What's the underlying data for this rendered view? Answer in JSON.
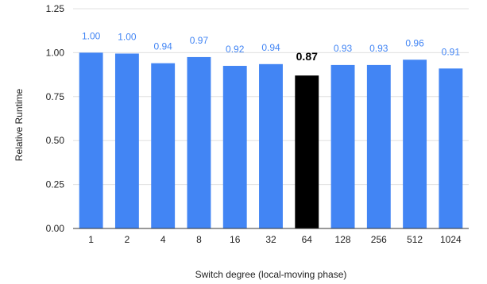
{
  "chart_data": {
    "type": "bar",
    "title": "",
    "xlabel": "Switch degree (local-moving phase)",
    "ylabel": "Relative Runtime",
    "categories": [
      "1",
      "2",
      "4",
      "8",
      "16",
      "32",
      "64",
      "128",
      "256",
      "512",
      "1024"
    ],
    "values": [
      1.0,
      0.995,
      0.94,
      0.975,
      0.925,
      0.935,
      0.87,
      0.93,
      0.93,
      0.96,
      0.91
    ],
    "data_labels": [
      "1.00",
      "1.00",
      "0.94",
      "0.97",
      "0.92",
      "0.94",
      "0.87",
      "0.93",
      "0.93",
      "0.96",
      "0.91"
    ],
    "highlight_index": 6,
    "ylim": [
      0,
      1.25
    ],
    "yticks": [
      0,
      0.25,
      0.5,
      0.75,
      1.0,
      1.25
    ],
    "ytick_labels": [
      "0.00",
      "0.25",
      "0.50",
      "0.75",
      "1.00",
      "1.25"
    ],
    "grid": "horizontal",
    "legend": "none",
    "colors": {
      "bar": "#4285f4",
      "highlight_bar": "#000000",
      "label": "#4285f4",
      "highlight_label": "#000000",
      "grid": "#e0e0e0",
      "axis": "#333333"
    }
  }
}
